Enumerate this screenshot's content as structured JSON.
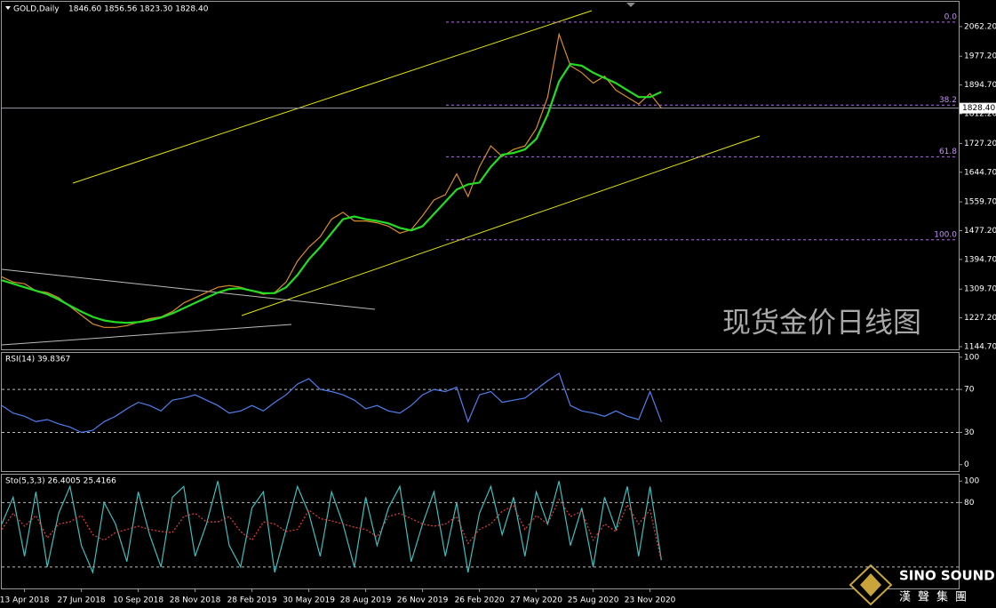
{
  "chart_data": [
    {
      "type": "line",
      "title": "GOLD,Daily",
      "subtitle": "1846.60 1856.56 1823.30 1828.40",
      "annotation": "现货金价日线图",
      "ylim": [
        1137.1,
        2133.2
      ],
      "yticks": [
        {
          "value": 2062.2,
          "label": "2062.20"
        },
        {
          "value": 1977.2,
          "label": "1977.20"
        },
        {
          "value": 1894.7,
          "label": "1894.70"
        },
        {
          "value": 1812.2,
          "label": "1812.20"
        },
        {
          "value": 1727.2,
          "label": "1727.20"
        },
        {
          "value": 1644.7,
          "label": "1644.70"
        },
        {
          "value": 1559.7,
          "label": "1559.70"
        },
        {
          "value": 1477.2,
          "label": "1477.20"
        },
        {
          "value": 1394.7,
          "label": "1394.70"
        },
        {
          "value": 1309.7,
          "label": "1309.70"
        },
        {
          "value": 1227.2,
          "label": "1227.20"
        },
        {
          "value": 1144.7,
          "label": "1144.70"
        }
      ],
      "last_price": {
        "value": 1828.4,
        "label": "1828.40"
      },
      "fibonacci": [
        {
          "label": "0.0",
          "value": 2075
        },
        {
          "label": "38.2",
          "value": 1837
        },
        {
          "label": "61.8",
          "value": 1689
        },
        {
          "label": "100.0",
          "value": 1451
        }
      ],
      "series": [
        {
          "color": "#d98c2b",
          "values": [
            1345,
            1330,
            1325,
            1305,
            1300,
            1285,
            1260,
            1235,
            1210,
            1200,
            1200,
            1205,
            1215,
            1225,
            1230,
            1245,
            1270,
            1285,
            1300,
            1315,
            1320,
            1315,
            1305,
            1295,
            1300,
            1330,
            1390,
            1430,
            1460,
            1510,
            1530,
            1505,
            1505,
            1500,
            1490,
            1470,
            1480,
            1520,
            1565,
            1580,
            1640,
            1575,
            1660,
            1720,
            1690,
            1710,
            1720,
            1770,
            1860,
            2040,
            1950,
            1930,
            1900,
            1920,
            1880,
            1860,
            1840,
            1870,
            1828.4
          ]
        },
        {
          "color": "#22dd22",
          "values": [
            1335,
            1325,
            1315,
            1305,
            1295,
            1280,
            1262,
            1245,
            1230,
            1220,
            1215,
            1213,
            1215,
            1220,
            1228,
            1240,
            1255,
            1270,
            1285,
            1300,
            1310,
            1312,
            1305,
            1298,
            1298,
            1315,
            1350,
            1395,
            1430,
            1470,
            1510,
            1518,
            1510,
            1505,
            1498,
            1485,
            1478,
            1490,
            1525,
            1560,
            1595,
            1610,
            1615,
            1660,
            1695,
            1700,
            1710,
            1740,
            1810,
            1905,
            1955,
            1950,
            1930,
            1915,
            1900,
            1880,
            1860,
            1860,
            1875
          ]
        }
      ]
    },
    {
      "type": "line",
      "title": "RSI(14) 39.8367",
      "ylim": [
        -6,
        104
      ],
      "yticks": [
        100,
        70,
        30,
        0
      ],
      "levels": [
        70,
        30
      ],
      "series": [
        {
          "color": "#4f7ff0",
          "values": [
            55,
            48,
            45,
            40,
            42,
            38,
            35,
            30,
            32,
            40,
            45,
            52,
            58,
            55,
            50,
            60,
            62,
            65,
            60,
            55,
            48,
            50,
            55,
            50,
            58,
            65,
            75,
            80,
            70,
            68,
            65,
            60,
            52,
            55,
            50,
            48,
            55,
            65,
            70,
            68,
            72,
            40,
            65,
            68,
            58,
            60,
            62,
            70,
            78,
            85,
            55,
            50,
            48,
            45,
            50,
            45,
            42,
            68,
            39.8367
          ]
        }
      ]
    },
    {
      "type": "line",
      "title": "Sto(5,3,3) 26.4005 25.4166",
      "ylim": [
        0,
        106
      ],
      "yticks": [
        100,
        80
      ],
      "levels": [
        80,
        20
      ],
      "categories": [
        null,
        null,
        "13 Apr 2018",
        null,
        null,
        null,
        null,
        "27 Jun 2018",
        null,
        null,
        null,
        null,
        "10 Sep 2018",
        null,
        null,
        null,
        null,
        "28 Nov 2018",
        null,
        null,
        null,
        null,
        "28 Feb 2019",
        null,
        null,
        null,
        null,
        "30 May 2019",
        null,
        null,
        null,
        null,
        "28 Aug 2019",
        null,
        null,
        null,
        null,
        "26 Nov 2019",
        null,
        null,
        null,
        null,
        "26 Feb 2020",
        null,
        null,
        null,
        null,
        "27 May 2020",
        null,
        null,
        null,
        null,
        "25 Aug 2020",
        null,
        null,
        null,
        null,
        "23 Nov 2020",
        null
      ],
      "series": [
        {
          "color": "#3fbfbf",
          "values": [
            60,
            85,
            30,
            90,
            20,
            70,
            95,
            40,
            15,
            80,
            60,
            25,
            90,
            50,
            20,
            85,
            95,
            30,
            60,
            100,
            40,
            20,
            75,
            90,
            15,
            55,
            95,
            70,
            30,
            90,
            60,
            20,
            85,
            40,
            75,
            95,
            25,
            60,
            90,
            30,
            80,
            15,
            70,
            95,
            50,
            85,
            30,
            90,
            60,
            100,
            40,
            75,
            20,
            85,
            55,
            95,
            30,
            95,
            26.4005
          ]
        },
        {
          "color": "#e04040",
          "dashed": true,
          "values": [
            55,
            70,
            58,
            68,
            47,
            60,
            62,
            68,
            50,
            45,
            52,
            55,
            58,
            55,
            53,
            52,
            67,
            70,
            62,
            62,
            67,
            53,
            45,
            62,
            60,
            53,
            55,
            73,
            65,
            63,
            60,
            57,
            55,
            48,
            67,
            70,
            65,
            60,
            58,
            60,
            67,
            42,
            55,
            60,
            72,
            77,
            55,
            68,
            60,
            83,
            67,
            72,
            45,
            60,
            53,
            78,
            60,
            73,
            25.4166
          ]
        }
      ]
    }
  ],
  "logo": {
    "name": "SINO SOUND",
    "chinese": "漢聲集團"
  }
}
